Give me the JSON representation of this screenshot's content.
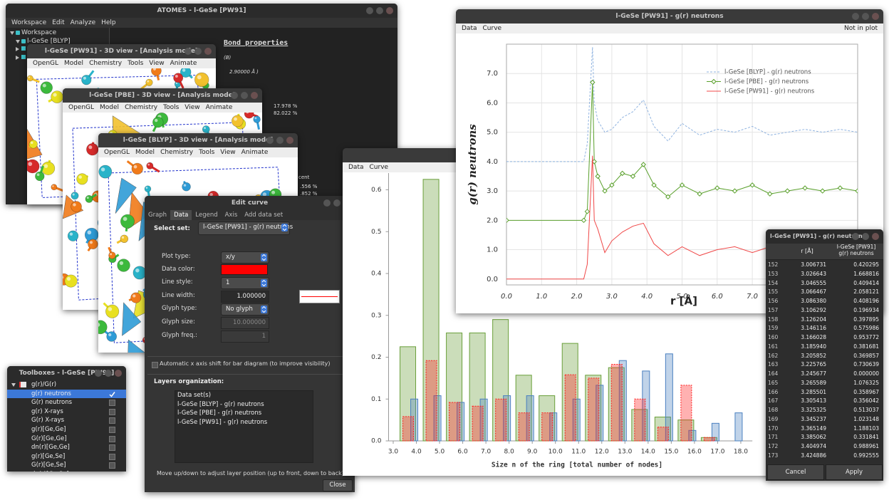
{
  "main_window": {
    "title": "ATOMES - l-GeSe [PW91]",
    "menu": [
      "Workspace",
      "Edit",
      "Analyze",
      "Help"
    ],
    "tree": [
      "Workspace",
      "l-GeSe [BLYP]"
    ],
    "panel": [
      "Bond properties",
      "(B)",
      "2.90000 Å )",
      "17.978 %",
      "82.022 %",
      "cent",
      ".556 %",
      ".852 %"
    ]
  },
  "views": [
    {
      "title": "l-GeSe [PW91] - 3D view - [Analysis mode]",
      "menu": [
        "OpenGL",
        "Model",
        "Chemistry",
        "Tools",
        "View",
        "Animate"
      ]
    },
    {
      "title": "l-GeSe [PBE] - 3D view - [Analysis mode]",
      "menu": [
        "OpenGL",
        "Model",
        "Chemistry",
        "Tools",
        "View",
        "Animate"
      ]
    },
    {
      "title": "l-GeSe [BLYP] - 3D view - [Analysis mode]",
      "menu": [
        "OpenGL",
        "Model",
        "Chemistry",
        "Tools",
        "View",
        "Animate"
      ]
    }
  ],
  "toolboxes": {
    "title": "Toolboxes - l-GeSe [PW91]",
    "items": [
      {
        "label": "g(r)/G(r)",
        "group": true
      },
      {
        "label": "g(r) neutrons",
        "checked": true
      },
      {
        "label": "G(r) neutrons"
      },
      {
        "label": "g(r) X-rays"
      },
      {
        "label": "G(r) X-rays"
      },
      {
        "label": "g(r)[Ge,Ge]"
      },
      {
        "label": "G(r)[Ge,Ge]"
      },
      {
        "label": "dn(r)[Ge,Ge]"
      },
      {
        "label": "g(r)[Ge,Se]"
      },
      {
        "label": "G(r)[Ge,Se]"
      },
      {
        "label": "dn(r)[Ge,Se]"
      }
    ]
  },
  "edit_curve": {
    "title": "Edit curve",
    "tabs": [
      {
        "label": "Graph"
      },
      {
        "label": "Data",
        "active": true
      },
      {
        "label": "Legend"
      },
      {
        "label": "Axis"
      },
      {
        "label": "Add data set"
      }
    ],
    "select_label": "Select set:",
    "select_value": "l-GeSe [PW91] - g(r) neutrons",
    "fields": [
      {
        "label": "Plot type:",
        "value": "x/y",
        "kind": "combo"
      },
      {
        "label": "Data color:",
        "color": "#ff0000"
      },
      {
        "label": "Line style:",
        "value": "1",
        "kind": "combo"
      },
      {
        "label": "Line width:",
        "value": "1.000000",
        "kind": "entry"
      },
      {
        "label": "Glyph type:",
        "value": "No glyph",
        "kind": "combo"
      },
      {
        "label": "Glyph size:",
        "value": "10.000000",
        "kind": "entry",
        "disabled": true
      },
      {
        "label": "Glyph freq.:",
        "value": "1",
        "kind": "entry",
        "disabled": true
      }
    ],
    "checkbox": "Automatic x axis shift for bar diagram  (to improve visibility)",
    "layers_label": "Layers organization:",
    "layers": [
      "Data set(s)",
      "l-GeSe [BLYP] - g(r) neutrons",
      "l-GeSe [PBE] - g(r) neutrons",
      "l-GeSe [PW91] - g(r) neutrons"
    ],
    "hint": "Move up/down to adjust layer position (up to front, down to back)",
    "close": "Close"
  },
  "ring_window": {
    "menu": [
      "Data",
      "Curve"
    ],
    "chart": {
      "type": "bar",
      "xlabel": "Size n of the ring [total number of nodes]",
      "x": [
        4,
        5,
        6,
        7,
        8,
        9,
        10,
        11,
        12,
        13,
        14,
        15,
        16,
        17,
        18
      ],
      "series": [
        {
          "color": "#6a9f3a",
          "values": [
            0.225,
            0.625,
            0.258,
            0.258,
            0.29,
            0.157,
            0.108,
            0.233,
            0.157,
            0.175,
            0.075,
            0.057,
            0.05,
            0.008,
            null
          ]
        },
        {
          "color": "#4a80c0",
          "values": [
            0.1,
            0.108,
            0.092,
            0.1,
            0.108,
            0.108,
            0.067,
            0.1,
            0.133,
            0.192,
            0.167,
            0.208,
            0.025,
            0.042,
            0.067
          ]
        },
        {
          "color": "#ff2020",
          "line_style": "dashed",
          "values": [
            0.058,
            0.192,
            0.092,
            0.083,
            0.1,
            0.067,
            0.067,
            0.158,
            0.15,
            0.183,
            0.1,
            0.033,
            0.133,
            0.008,
            null
          ]
        }
      ],
      "xlim": [
        2.8,
        18.5
      ],
      "ylim": [
        0,
        0.64
      ],
      "xticks": [
        {
          "value": 3,
          "label": "3.0"
        },
        {
          "value": 4,
          "label": "4.0"
        },
        {
          "value": 5,
          "label": "5.0"
        },
        {
          "value": 6,
          "label": "6.0"
        },
        {
          "value": 7,
          "label": "7.0"
        },
        {
          "value": 8,
          "label": "8.0"
        },
        {
          "value": 9,
          "label": "9.0"
        },
        {
          "value": 10,
          "label": "10.0"
        },
        {
          "value": 11,
          "label": "11.0"
        },
        {
          "value": 12,
          "label": "12.0"
        },
        {
          "value": 13,
          "label": "13.0"
        },
        {
          "value": 14,
          "label": "14.0"
        },
        {
          "value": 15,
          "label": "15.0"
        },
        {
          "value": 16,
          "label": "16.0"
        },
        {
          "value": 17,
          "label": "17.0"
        },
        {
          "value": 18,
          "label": "18.0"
        }
      ],
      "yticks": [
        {
          "value": 0,
          "label": "0.0"
        },
        {
          "value": 0.1,
          "label": "0.1"
        },
        {
          "value": 0.2,
          "label": "0.2"
        },
        {
          "value": 0.3,
          "label": "0.3"
        },
        {
          "value": 0.4,
          "label": "0.4"
        },
        {
          "value": 0.5,
          "label": "0.5"
        },
        {
          "value": 0.6,
          "label": "0.6"
        }
      ]
    }
  },
  "gr_window": {
    "title": "l-GeSe [PW91] - g(r) neutrons",
    "menu": [
      "Data",
      "Curve"
    ],
    "corner": "Not in plot",
    "chart": {
      "type": "line",
      "xlabel": "r [Å]",
      "ylabel": "g(r) neutrons",
      "x": [
        0,
        2.2,
        2.3,
        2.45,
        2.5,
        2.6,
        2.8,
        3.0,
        3.3,
        3.6,
        3.9,
        4.2,
        4.6,
        5.0,
        5.5,
        6.0,
        6.5,
        7.0,
        7.5,
        8.0,
        8.5,
        9.0,
        9.5,
        10
      ],
      "series": [
        {
          "name": "l-GeSe [BLYP] - g(r) neutrons",
          "color": "#8fb3e0",
          "line_style": "dashed",
          "values": [
            4.0,
            4.0,
            4.6,
            7.9,
            6.0,
            5.4,
            5.0,
            5.1,
            5.5,
            5.7,
            6.1,
            5.2,
            4.7,
            5.3,
            4.9,
            5.1,
            5.0,
            5.2,
            4.9,
            5.0,
            5.1,
            5.0,
            5.1,
            5.0
          ]
        },
        {
          "name": "l-GeSe [PBE] - g(r) neutrons",
          "color": "#5aa02c",
          "glyph": "diamond",
          "values": [
            2.0,
            2.0,
            2.3,
            6.7,
            4.0,
            3.5,
            3.0,
            3.2,
            3.6,
            3.5,
            3.9,
            3.2,
            2.8,
            3.2,
            2.9,
            3.1,
            3.0,
            3.2,
            2.9,
            3.0,
            3.1,
            3.0,
            3.1,
            3.0
          ]
        },
        {
          "name": "l-GeSe [PW91] - g(r) neutrons",
          "color": "#f04848",
          "values": [
            0,
            0,
            0.5,
            4.2,
            2.0,
            1.7,
            0.9,
            1.3,
            1.6,
            1.8,
            1.9,
            1.2,
            0.8,
            1.1,
            0.8,
            1.0,
            1.1,
            0.9,
            1.1,
            1.0,
            0.9,
            1.0,
            1.1,
            1.0
          ]
        }
      ],
      "xlim": [
        0,
        10
      ],
      "ylim": [
        -0.2,
        8
      ],
      "xticks": [
        {
          "value": 0,
          "label": "0.0"
        },
        {
          "value": 1,
          "label": "1.0"
        },
        {
          "value": 2,
          "label": "2.0"
        },
        {
          "value": 3,
          "label": "3.0"
        },
        {
          "value": 4,
          "label": "4.0"
        },
        {
          "value": 5,
          "label": "5.0"
        },
        {
          "value": 6,
          "label": "6.0"
        },
        {
          "value": 7,
          "label": "7.0"
        }
      ],
      "yticks": [
        {
          "value": 0,
          "label": "0.0"
        },
        {
          "value": 1,
          "label": "1.0"
        },
        {
          "value": 2,
          "label": "2.0"
        },
        {
          "value": 3,
          "label": "3.0"
        },
        {
          "value": 4,
          "label": "4.0"
        },
        {
          "value": 5,
          "label": "5.0"
        },
        {
          "value": 6,
          "label": "6.0"
        },
        {
          "value": 7,
          "label": "7.0"
        }
      ],
      "grid": true
    }
  },
  "table_window": {
    "title": "l-GeSe [PW91] - g(r) neutrons",
    "headers": [
      "r [Å]",
      "l-GeSe [PW91] g(r) neutrons"
    ],
    "rows": [
      [
        "152",
        "3.006731",
        "0.420295"
      ],
      [
        "153",
        "3.026643",
        "1.668816"
      ],
      [
        "154",
        "3.046555",
        "0.409414"
      ],
      [
        "155",
        "3.066467",
        "2.058121"
      ],
      [
        "156",
        "3.086380",
        "0.408196"
      ],
      [
        "157",
        "3.106292",
        "0.196934"
      ],
      [
        "158",
        "3.126204",
        "0.397895"
      ],
      [
        "159",
        "3.146116",
        "0.575986"
      ],
      [
        "160",
        "3.166028",
        "0.953772"
      ],
      [
        "161",
        "3.185940",
        "0.381681"
      ],
      [
        "162",
        "3.205852",
        "0.369857"
      ],
      [
        "163",
        "3.225765",
        "0.730639"
      ],
      [
        "164",
        "3.245677",
        "0.000000"
      ],
      [
        "165",
        "3.265589",
        "1.076325"
      ],
      [
        "166",
        "3.285501",
        "0.358967"
      ],
      [
        "167",
        "3.305413",
        "0.356042"
      ],
      [
        "168",
        "3.325325",
        "0.513037"
      ],
      [
        "169",
        "3.345237",
        "1.023148"
      ],
      [
        "170",
        "3.365149",
        "1.188103"
      ],
      [
        "171",
        "3.385062",
        "0.331841"
      ],
      [
        "172",
        "3.404974",
        "0.988961"
      ],
      [
        "173",
        "3.424886",
        "0.992555"
      ]
    ],
    "cancel": "Cancel",
    "apply": "Apply"
  }
}
